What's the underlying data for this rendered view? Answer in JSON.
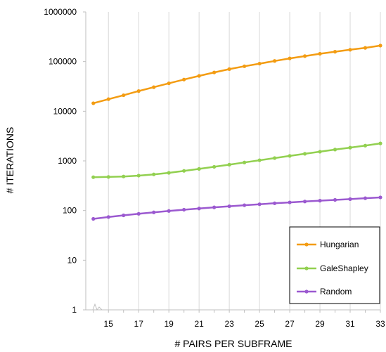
{
  "chart_data": {
    "type": "line",
    "title": "",
    "xlabel": "# PAIRS PER SUBFRAME",
    "ylabel": "# ITERATIONS",
    "xlim": [
      13.5,
      33
    ],
    "x_ticks": [
      15,
      17,
      19,
      21,
      23,
      25,
      27,
      29,
      31,
      33
    ],
    "ylim": [
      1,
      1000000
    ],
    "y_scale": "log",
    "y_ticks": [
      1,
      10,
      100,
      1000,
      10000,
      100000,
      1000000
    ],
    "y_tick_labels": [
      "1",
      "10",
      "100",
      "1000",
      "10000",
      "100000",
      "1000000"
    ],
    "grid": "vertical major gridlines",
    "legend_position": "bottom-right",
    "x": [
      14,
      15,
      16,
      17,
      18,
      19,
      20,
      21,
      22,
      23,
      24,
      25,
      26,
      27,
      28,
      29,
      30,
      31,
      32,
      33
    ],
    "series": [
      {
        "name": "Hungarian",
        "color": "#f39c12",
        "values": [
          14500,
          17500,
          21000,
          25500,
          30500,
          36500,
          43500,
          51500,
          60500,
          70500,
          80500,
          91000,
          103000,
          116000,
          129000,
          144000,
          158000,
          173000,
          189000,
          210000
        ]
      },
      {
        "name": "GaleShapley",
        "color": "#92d050",
        "values": [
          470,
          475,
          485,
          505,
          535,
          575,
          630,
          690,
          760,
          840,
          930,
          1030,
          1140,
          1260,
          1390,
          1530,
          1690,
          1850,
          2030,
          2250
        ]
      },
      {
        "name": "Random",
        "color": "#9b59d0",
        "values": [
          68,
          74,
          80,
          86,
          92,
          98,
          104,
          110,
          116,
          122,
          128,
          134,
          140,
          146,
          152,
          158,
          164,
          170,
          177,
          184
        ]
      }
    ]
  }
}
